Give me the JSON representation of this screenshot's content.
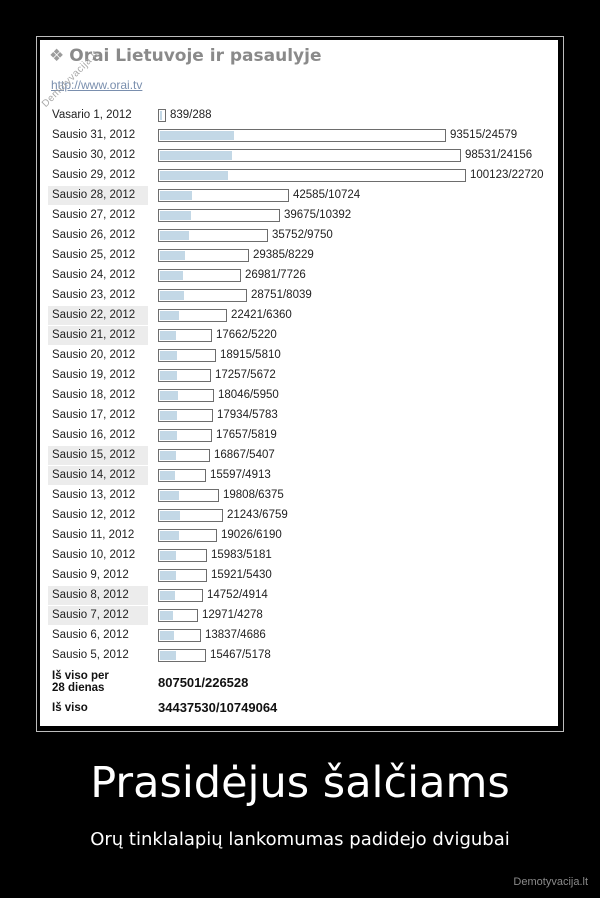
{
  "site_title": "Orai Lietuvoje ir pasaulyje",
  "site_link": "http://www.orai.tv",
  "watermark": "Demotyvacija.lt",
  "chart_data": {
    "type": "bar",
    "categories": [
      "Vasario 1, 2012",
      "Sausio 31, 2012",
      "Sausio 30, 2012",
      "Sausio 29, 2012",
      "Sausio 28, 2012",
      "Sausio 27, 2012",
      "Sausio 26, 2012",
      "Sausio 25, 2012",
      "Sausio 24, 2012",
      "Sausio 23, 2012",
      "Sausio 22, 2012",
      "Sausio 21, 2012",
      "Sausio 20, 2012",
      "Sausio 19, 2012",
      "Sausio 18, 2012",
      "Sausio 17, 2012",
      "Sausio 16, 2012",
      "Sausio 15, 2012",
      "Sausio 14, 2012",
      "Sausio 13, 2012",
      "Sausio 12, 2012",
      "Sausio 11, 2012",
      "Sausio 10, 2012",
      "Sausio 9, 2012",
      "Sausio 8, 2012",
      "Sausio 7, 2012",
      "Sausio 6, 2012",
      "Sausio 5, 2012"
    ],
    "series": [
      {
        "values": [
          839,
          93515,
          98531,
          100123,
          42585,
          39675,
          35752,
          29385,
          26981,
          28751,
          22421,
          17662,
          18915,
          17257,
          18046,
          17934,
          17657,
          16867,
          15597,
          19808,
          21243,
          19026,
          15983,
          15921,
          14752,
          12971,
          13837,
          15467
        ]
      },
      {
        "values": [
          288,
          24579,
          24156,
          22720,
          10724,
          10392,
          9750,
          8229,
          7726,
          8039,
          6360,
          5220,
          5810,
          5672,
          5950,
          5783,
          5819,
          5407,
          4913,
          6375,
          6759,
          6190,
          5181,
          5430,
          4914,
          4278,
          4686,
          5178
        ]
      }
    ],
    "labels": [
      "839/288",
      "93515/24579",
      "98531/24156",
      "100123/22720",
      "42585/10724",
      "39675/10392",
      "35752/9750",
      "29385/8229",
      "26981/7726",
      "28751/8039",
      "22421/6360",
      "17662/5220",
      "18915/5810",
      "17257/5672",
      "18046/5950",
      "17934/5783",
      "17657/5819",
      "16867/5407",
      "15597/4913",
      "19808/6375",
      "21243/6759",
      "19026/6190",
      "15983/5181",
      "15921/5430",
      "14752/4914",
      "12971/4278",
      "13837/4686",
      "15467/5178"
    ],
    "shaded_rows": [
      4,
      10,
      11,
      17,
      18,
      24,
      25
    ]
  },
  "totals": [
    {
      "label": "Iš viso per\n28 dienas",
      "value": "807501/226528"
    },
    {
      "label": "Iš viso",
      "value": "34437530/10749064"
    }
  ],
  "caption": "Prasidėjus šalčiams",
  "subcaption": "Orų tinklalapių lankomumas padidejo dvigubai",
  "credit": "Demotyvacija.lt"
}
